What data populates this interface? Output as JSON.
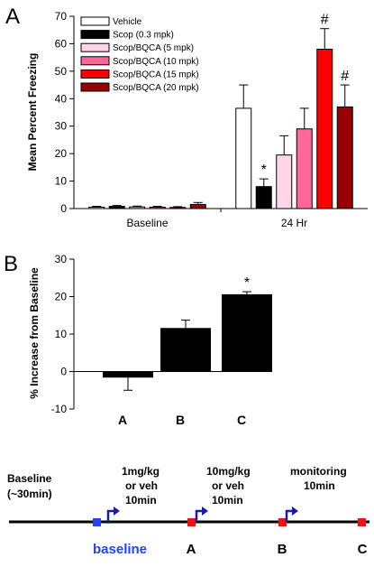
{
  "panel_letters": [
    "A",
    "B"
  ],
  "colors": {
    "vehicle": "#ffffff",
    "scop": "#000000",
    "scop_bqca_5": "#ffd6e6",
    "scop_bqca_10": "#ff6699",
    "scop_bqca_15": "#ff0000",
    "scop_bqca_20": "#990000",
    "baseline_marker": "#2244ee",
    "event_marker": "#ee1111",
    "arrow": "#1a1aa8"
  },
  "chart_data": [
    {
      "type": "bar",
      "title": "",
      "xlabel": "",
      "ylabel": "Mean Percent Freezing",
      "ylim": [
        0,
        70
      ],
      "yticks": [
        0,
        10,
        20,
        30,
        40,
        50,
        60,
        70
      ],
      "categories": [
        "Baseline",
        "24 Hr"
      ],
      "legend_position": "top-left",
      "series": [
        {
          "name": "Vehicle",
          "values": [
            0.5,
            36.5
          ],
          "errors": [
            0.3,
            8.5
          ],
          "color": "#ffffff"
        },
        {
          "name": "Scop (0.3 mpk)",
          "values": [
            0.8,
            8.0
          ],
          "errors": [
            0.3,
            2.8
          ],
          "color": "#000000"
        },
        {
          "name": "Scop/BQCA (5 mpk)",
          "values": [
            0.6,
            19.5
          ],
          "errors": [
            0.3,
            7.0
          ],
          "color": "#ffd6e6"
        },
        {
          "name": "Scop/BQCA (10 mpk)",
          "values": [
            0.5,
            29.0
          ],
          "errors": [
            0.3,
            7.5
          ],
          "color": "#ff6699"
        },
        {
          "name": "Scop/BQCA (15 mpk)",
          "values": [
            0.4,
            58.0
          ],
          "errors": [
            0.3,
            7.5
          ],
          "color": "#ff0000"
        },
        {
          "name": "Scop/BQCA (20 mpk)",
          "values": [
            1.5,
            37.0
          ],
          "errors": [
            0.7,
            8.0
          ],
          "color": "#990000"
        }
      ],
      "annotations": [
        {
          "text": "*",
          "series": 1,
          "category": 1
        },
        {
          "text": "#",
          "series": 4,
          "category": 1
        },
        {
          "text": "#",
          "series": 5,
          "category": 1
        }
      ]
    },
    {
      "type": "bar",
      "title": "",
      "xlabel": "",
      "ylabel": "% Increase from Baseline",
      "ylim": [
        -10,
        30
      ],
      "yticks": [
        -10,
        0,
        10,
        20,
        30
      ],
      "categories": [
        "A",
        "B",
        "C"
      ],
      "values": [
        -1.5,
        11.5,
        20.5
      ],
      "errors": [
        3.5,
        2.2,
        0.8
      ],
      "color": "#000000",
      "annotations": [
        {
          "text": "*",
          "category": 2
        }
      ]
    }
  ],
  "timeline": {
    "labels": {
      "baseline_period": [
        "Baseline",
        "(~30min)"
      ],
      "dose1": [
        "1mg/kg",
        "or veh",
        "10min"
      ],
      "dose2": [
        "10mg/kg",
        "or veh",
        "10min"
      ],
      "monitoring": [
        "monitoring",
        "10min"
      ]
    },
    "point_labels": [
      "baseline",
      "A",
      "B",
      "C"
    ]
  }
}
